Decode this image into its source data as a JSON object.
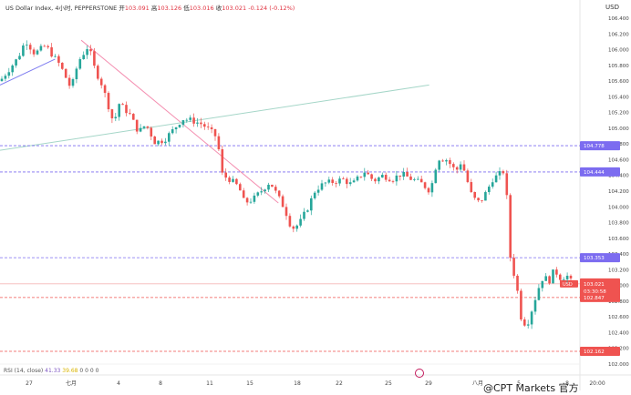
{
  "header": {
    "symbol": "US Dollar Index",
    "interval": "4小时",
    "source": "PEPPERSTONE",
    "open_label": "开",
    "open": "103.091",
    "high_label": "高",
    "high": "103.126",
    "low_label": "低",
    "low": "103.016",
    "close_label": "收",
    "close": "103.021",
    "change": "-0.124 (-0.12%)"
  },
  "currency_label": "USD",
  "rsi": {
    "label": "RSI (14, close)",
    "value": "41.33",
    "ma": "39.68",
    "extra": "0 0 0 0"
  },
  "watermark": "@CPT Markets 官方",
  "colors": {
    "up": "#26a69a",
    "down": "#ef5350",
    "blue_level": "#7c6cf0",
    "red_level": "#ef5350"
  },
  "chart_data": {
    "type": "candlestick",
    "ylim": [
      102.0,
      106.4
    ],
    "y_ticks": [
      102.0,
      102.2,
      102.4,
      102.6,
      102.8,
      103.0,
      103.2,
      103.4,
      103.6,
      103.8,
      104.0,
      104.2,
      104.4,
      104.6,
      104.8,
      105.0,
      105.2,
      105.4,
      105.6,
      105.8,
      106.0,
      106.2,
      106.4
    ],
    "y_tick_labels": [
      "102.000",
      "102.200",
      "102.400",
      "102.600",
      "102.800",
      "103.000",
      "103.200",
      "103.400",
      "103.600",
      "103.800",
      "104.000",
      "104.200",
      "104.400",
      "104.600",
      "104.800",
      "105.000",
      "105.200",
      "105.400",
      "105.600",
      "105.800",
      "106.000",
      "106.200",
      "106.400"
    ],
    "x_tick_labels": [
      "27",
      "七月",
      "4",
      "8",
      "11",
      "15",
      "18",
      "22",
      "25",
      "29",
      "八月",
      "5",
      "8",
      "20:00"
    ],
    "price_tags": [
      {
        "value": 104.778,
        "label": "104.778",
        "kind": "blue"
      },
      {
        "value": 104.444,
        "label": "104.444",
        "kind": "blue"
      },
      {
        "value": 103.353,
        "label": "103.353",
        "kind": "blue"
      },
      {
        "value": 103.021,
        "label": "103.021",
        "kind": "current"
      },
      {
        "value": 102.847,
        "label": "102.847",
        "kind": "red"
      },
      {
        "value": 102.162,
        "label": "102.162",
        "kind": "red"
      }
    ],
    "countdown": "03:30:58",
    "trendlines": [
      {
        "kind": "resistance",
        "x": [
          0.14,
          0.48
        ],
        "y": [
          106.12,
          104.05
        ]
      },
      {
        "kind": "channel",
        "x": [
          0.0,
          0.74
        ],
        "y": [
          104.72,
          105.55
        ]
      },
      {
        "kind": "support",
        "x": [
          0.0,
          0.095
        ],
        "y": [
          105.55,
          105.88
        ]
      }
    ],
    "close_path": [
      [
        0,
        105.6
      ],
      [
        20,
        105.9
      ],
      [
        28,
        106.12
      ],
      [
        38,
        105.95
      ],
      [
        50,
        106.05
      ],
      [
        66,
        105.8
      ],
      [
        78,
        105.5
      ],
      [
        86,
        105.85
      ],
      [
        97,
        106.05
      ],
      [
        104,
        105.75
      ],
      [
        112,
        105.55
      ],
      [
        125,
        105.05
      ],
      [
        130,
        105.32
      ],
      [
        142,
        105.18
      ],
      [
        152,
        104.95
      ],
      [
        160,
        105.05
      ],
      [
        170,
        104.82
      ],
      [
        180,
        104.85
      ],
      [
        190,
        104.98
      ],
      [
        200,
        105.12
      ],
      [
        210,
        105.1
      ],
      [
        222,
        105.05
      ],
      [
        232,
        104.95
      ],
      [
        238,
        104.88
      ],
      [
        244,
        104.4
      ],
      [
        252,
        104.35
      ],
      [
        262,
        104.25
      ],
      [
        268,
        104.05
      ],
      [
        278,
        104.1
      ],
      [
        288,
        104.22
      ],
      [
        296,
        104.32
      ],
      [
        304,
        104.15
      ],
      [
        312,
        103.98
      ],
      [
        320,
        103.72
      ],
      [
        328,
        103.78
      ],
      [
        338,
        104.0
      ],
      [
        346,
        104.22
      ],
      [
        356,
        104.3
      ],
      [
        366,
        104.32
      ],
      [
        376,
        104.35
      ],
      [
        386,
        104.28
      ],
      [
        394,
        104.38
      ],
      [
        400,
        104.45
      ],
      [
        410,
        104.33
      ],
      [
        420,
        104.4
      ],
      [
        430,
        104.35
      ],
      [
        440,
        104.42
      ],
      [
        450,
        104.36
      ],
      [
        462,
        104.3
      ],
      [
        472,
        104.2
      ],
      [
        480,
        104.62
      ],
      [
        490,
        104.6
      ],
      [
        500,
        104.45
      ],
      [
        506,
        104.58
      ],
      [
        512,
        104.35
      ],
      [
        518,
        104.12
      ],
      [
        526,
        104.05
      ],
      [
        534,
        104.2
      ],
      [
        540,
        104.35
      ],
      [
        552,
        104.45
      ],
      [
        556,
        104.1
      ],
      [
        560,
        103.3
      ],
      [
        566,
        103.05
      ],
      [
        572,
        102.55
      ],
      [
        578,
        102.5
      ],
      [
        584,
        102.72
      ],
      [
        590,
        102.95
      ],
      [
        596,
        103.12
      ],
      [
        602,
        103.05
      ],
      [
        608,
        103.2
      ],
      [
        614,
        103.1
      ],
      [
        622,
        103.12
      ],
      [
        628,
        103.02
      ]
    ]
  }
}
